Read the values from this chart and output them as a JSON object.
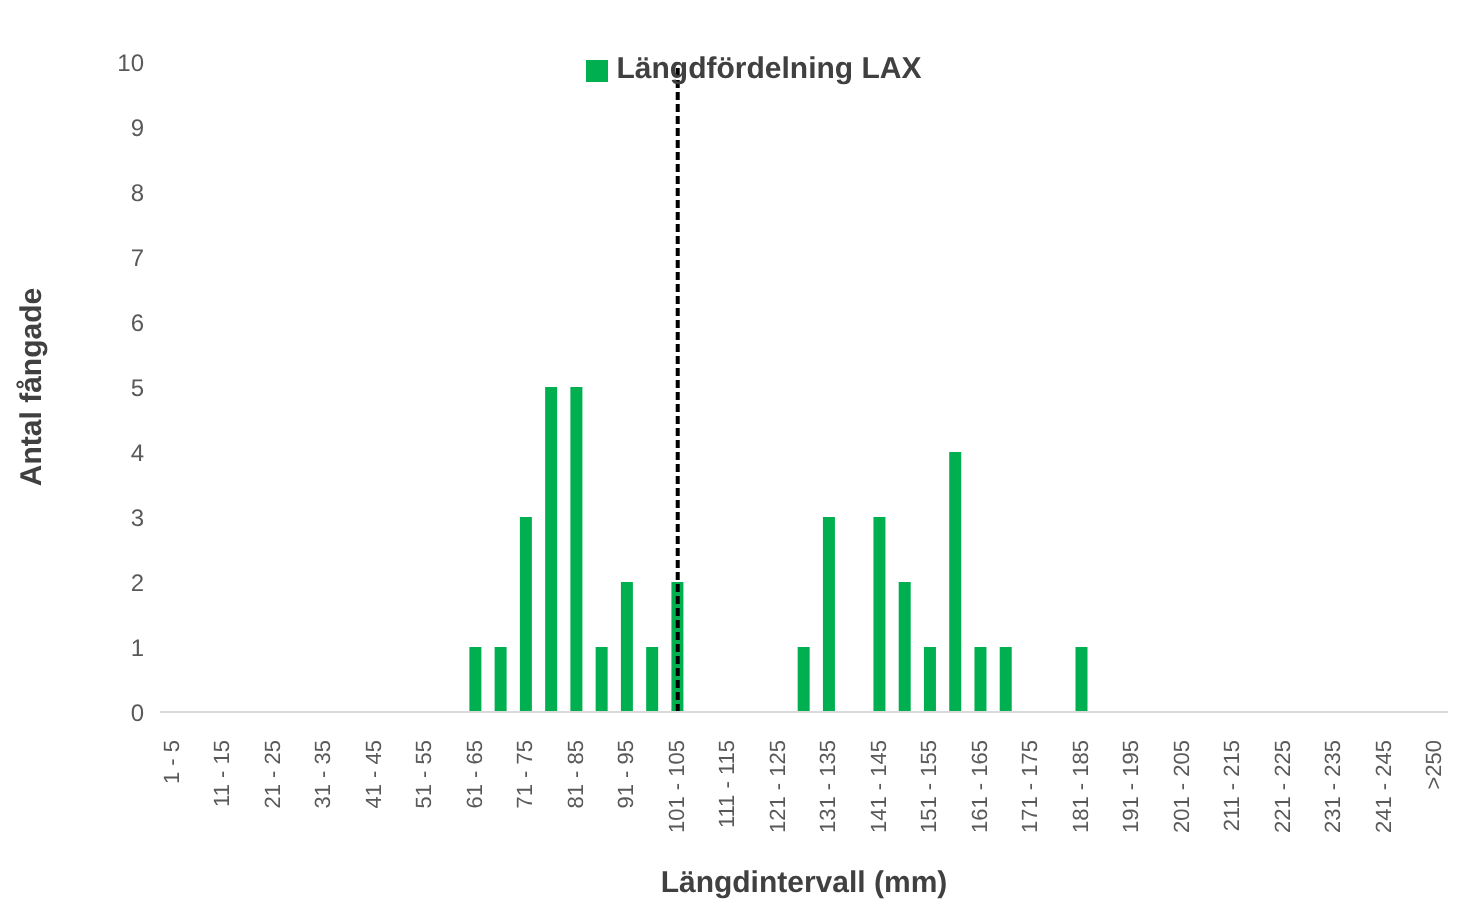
{
  "chart_data": {
    "type": "bar",
    "xlabel": "Längdintervall (mm)",
    "ylabel": "Antal fångade",
    "categories": [
      "1 - 5",
      null,
      "11 - 15",
      null,
      "21 - 25",
      null,
      "31 - 35",
      null,
      "41 - 45",
      null,
      "51 - 55",
      null,
      "61 - 65",
      null,
      "71 - 75",
      null,
      "81 - 85",
      null,
      "91 - 95",
      null,
      "101 - 105",
      null,
      "111 - 115",
      null,
      "121 - 125",
      null,
      "131 - 135",
      null,
      "141 - 145",
      null,
      "151 - 155",
      null,
      "161 - 165",
      null,
      "171 - 175",
      null,
      "181 - 185",
      null,
      "191 - 195",
      null,
      "201 - 205",
      null,
      "211 - 215",
      null,
      "221 - 225",
      null,
      "231 - 235",
      null,
      "241 - 245",
      null,
      ">250"
    ],
    "series": [
      {
        "name": "Längdfördelning LAX",
        "color": "#00b050",
        "values": [
          0,
          0,
          0,
          0,
          0,
          0,
          0,
          0,
          0,
          0,
          0,
          0,
          1,
          1,
          3,
          5,
          5,
          1,
          2,
          1,
          2,
          0,
          0,
          0,
          0,
          1,
          3,
          0,
          3,
          2,
          1,
          4,
          1,
          1,
          0,
          0,
          1,
          0,
          0,
          0,
          0,
          0,
          0,
          0,
          0,
          0,
          0,
          0,
          0,
          0,
          0
        ]
      }
    ],
    "ylim": [
      0,
      10
    ],
    "yticks": [
      0,
      1,
      2,
      3,
      4,
      5,
      6,
      7,
      8,
      9,
      10
    ],
    "grid": false,
    "legend": "top",
    "ref_lines": [
      {
        "axis": "x",
        "value": "101 - 105",
        "color": "#000000",
        "line_style": "dashed"
      }
    ]
  }
}
